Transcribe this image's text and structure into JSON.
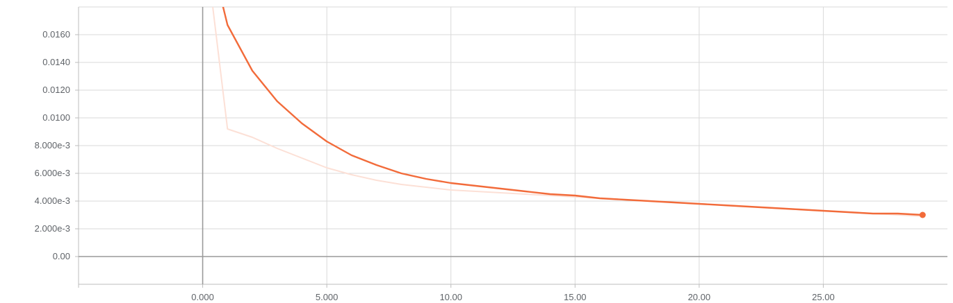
{
  "chart_data": {
    "type": "line",
    "title": "",
    "xlabel": "",
    "ylabel": "",
    "xlim": [
      -5.0,
      30.0
    ],
    "ylim": [
      -0.002,
      0.018
    ],
    "x_ticks": [
      0,
      5,
      10,
      15,
      20,
      25
    ],
    "x_tick_labels": [
      "0.000",
      "5.000",
      "10.00",
      "15.00",
      "20.00",
      "25.00"
    ],
    "y_ticks": [
      0,
      0.002,
      0.004,
      0.006,
      0.008,
      0.01,
      0.012,
      0.014,
      0.016
    ],
    "y_tick_labels": [
      "0.00",
      "2.000e-3",
      "4.000e-3",
      "6.000e-3",
      "8.000e-3",
      "0.0100",
      "0.0120",
      "0.0140",
      "0.0160"
    ],
    "grid": true,
    "legend": "none",
    "series": [
      {
        "role": "raw",
        "color": "#fce0d6",
        "x": [
          0,
          1,
          2,
          3,
          4,
          5,
          6,
          7,
          8,
          9,
          10,
          11,
          12,
          13,
          14,
          15,
          16,
          17,
          18,
          19,
          20,
          21,
          22,
          23,
          24,
          25,
          26,
          27,
          28,
          29
        ],
        "y": [
          0.024,
          0.0092,
          0.0086,
          0.0078,
          0.0071,
          0.0064,
          0.0059,
          0.0055,
          0.0052,
          0.005,
          0.0048,
          0.0047,
          0.0046,
          0.0045,
          0.0044,
          0.0043,
          0.0042,
          0.0041,
          0.004,
          0.0039,
          0.0038,
          0.0037,
          0.0036,
          0.0035,
          0.0034,
          0.0033,
          0.0032,
          0.0031,
          0.003,
          0.0029
        ]
      },
      {
        "role": "smoothed",
        "color": "#f26b3a",
        "x": [
          0,
          1,
          2,
          3,
          4,
          5,
          6,
          7,
          8,
          9,
          10,
          11,
          12,
          13,
          14,
          15,
          16,
          17,
          18,
          19,
          20,
          21,
          22,
          23,
          24,
          25,
          26,
          27,
          28,
          29
        ],
        "y": [
          0.024,
          0.0167,
          0.0134,
          0.0112,
          0.0096,
          0.0083,
          0.0073,
          0.0066,
          0.006,
          0.0056,
          0.0053,
          0.0051,
          0.0049,
          0.0047,
          0.0045,
          0.0044,
          0.0042,
          0.0041,
          0.004,
          0.0039,
          0.0038,
          0.0037,
          0.0036,
          0.0035,
          0.0034,
          0.0033,
          0.0032,
          0.0031,
          0.0031,
          0.003
        ]
      }
    ]
  }
}
